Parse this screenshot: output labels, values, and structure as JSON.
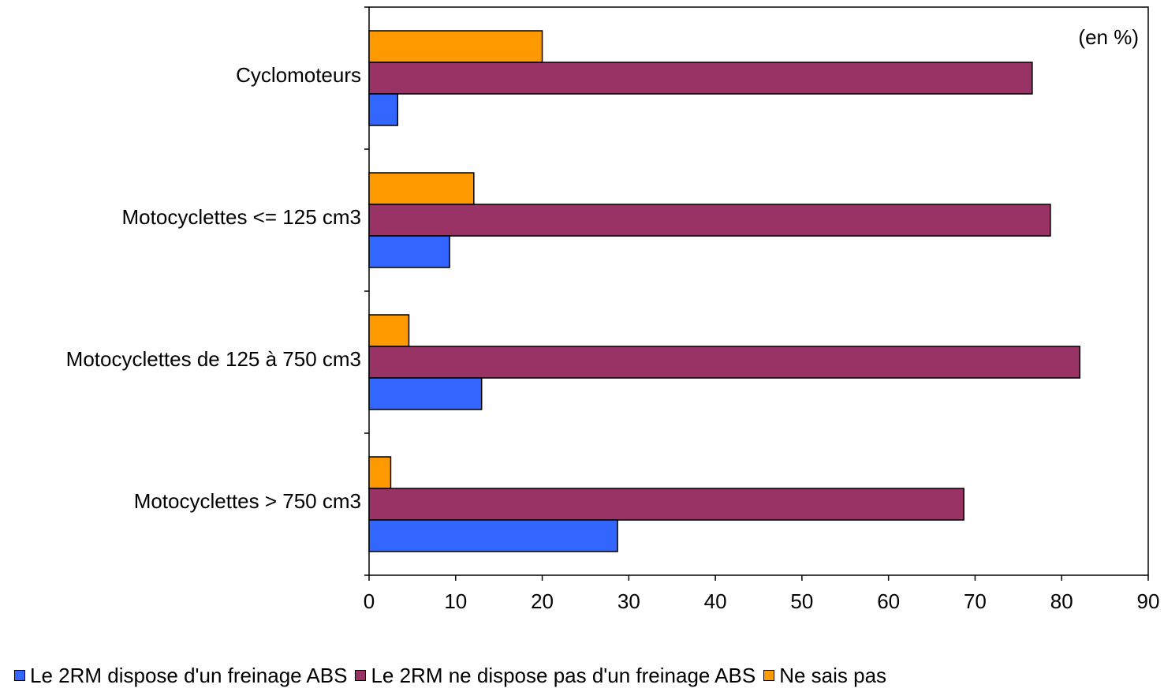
{
  "chart_data": {
    "type": "bar",
    "orientation": "horizontal",
    "annotation": "(en %)",
    "categories": [
      "Cyclomoteurs",
      "Motocyclettes <= 125 cm3",
      "Motocyclettes de 125 à 750 cm3",
      "Motocyclettes > 750 cm3"
    ],
    "series": [
      {
        "name": "Le 2RM dispose d'un freinage ABS",
        "color": "#3366FF",
        "values": [
          3.3,
          9.3,
          13.0,
          28.7
        ]
      },
      {
        "name": "Le 2RM ne dispose pas d'un freinage ABS",
        "color": "#993366",
        "values": [
          76.6,
          78.7,
          82.1,
          68.7
        ]
      },
      {
        "name": "Ne sais pas",
        "color": "#FF9900",
        "values": [
          20.0,
          12.1,
          4.6,
          2.5
        ]
      }
    ],
    "xlim": [
      0,
      90
    ],
    "xticks": [
      "0",
      "10",
      "20",
      "30",
      "40",
      "50",
      "60",
      "70",
      "80",
      "90"
    ],
    "grid": false,
    "legend_position": "bottom"
  }
}
